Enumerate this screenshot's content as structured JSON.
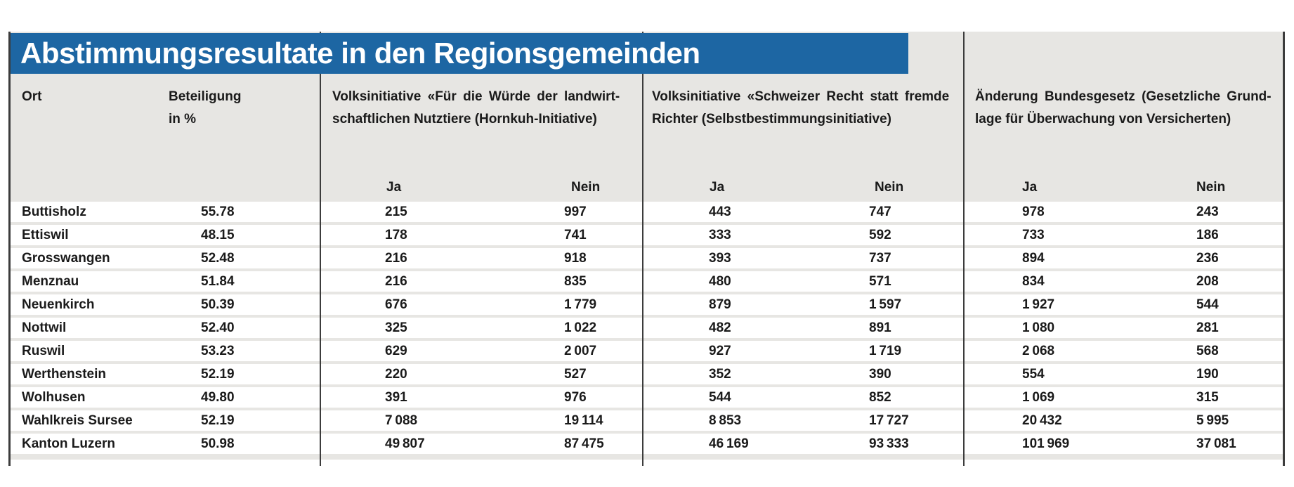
{
  "title": "Abstimmungsresultate in den Regionsgemeinden",
  "colors": {
    "banner_blue": "#1d66a3",
    "table_background": "#e7e6e3",
    "row_background": "#ffffff",
    "divider": "#3c3c3c",
    "text": "#1a1a1a",
    "title_text": "#ffffff"
  },
  "columns": {
    "ort": "Ort",
    "beteiligung_line1": "Beteiligung",
    "beteiligung_line2": "in %",
    "ja": "Ja",
    "nein": "Nein",
    "initiatives": [
      {
        "line1": "Volksinitiative «Für die Würde der landwirt-",
        "line2": "schaftlichen Nutztiere (Hornkuh-Initiative)"
      },
      {
        "line1": "Volksinitiative «Schweizer Recht statt fremde",
        "line2": "Richter (Selbstbestimmungsinitiative)"
      },
      {
        "line1": "Änderung Bundesgesetz (Gesetzliche Grund-",
        "line2": "lage für Überwachung von Versicherten)"
      }
    ]
  },
  "rows": [
    {
      "ort": "Buttisholz",
      "beteiligung": "55.78",
      "i1_ja": "215",
      "i1_nein": "997",
      "i2_ja": "443",
      "i2_nein": "747",
      "i3_ja": "978",
      "i3_nein": "243"
    },
    {
      "ort": "Ettiswil",
      "beteiligung": "48.15",
      "i1_ja": "178",
      "i1_nein": "741",
      "i2_ja": "333",
      "i2_nein": "592",
      "i3_ja": "733",
      "i3_nein": "186"
    },
    {
      "ort": "Grosswangen",
      "beteiligung": "52.48",
      "i1_ja": "216",
      "i1_nein": "918",
      "i2_ja": "393",
      "i2_nein": "737",
      "i3_ja": "894",
      "i3_nein": "236"
    },
    {
      "ort": "Menznau",
      "beteiligung": "51.84",
      "i1_ja": "216",
      "i1_nein": "835",
      "i2_ja": "480",
      "i2_nein": "571",
      "i3_ja": "834",
      "i3_nein": "208"
    },
    {
      "ort": "Neuenkirch",
      "beteiligung": "50.39",
      "i1_ja": "676",
      "i1_nein": "1 779",
      "i2_ja": "879",
      "i2_nein": "1 597",
      "i3_ja": "1 927",
      "i3_nein": "544"
    },
    {
      "ort": "Nottwil",
      "beteiligung": "52.40",
      "i1_ja": "325",
      "i1_nein": "1 022",
      "i2_ja": "482",
      "i2_nein": "891",
      "i3_ja": "1 080",
      "i3_nein": "281"
    },
    {
      "ort": "Ruswil",
      "beteiligung": "53.23",
      "i1_ja": "629",
      "i1_nein": "2 007",
      "i2_ja": "927",
      "i2_nein": "1 719",
      "i3_ja": "2 068",
      "i3_nein": "568"
    },
    {
      "ort": "Werthenstein",
      "beteiligung": "52.19",
      "i1_ja": "220",
      "i1_nein": "527",
      "i2_ja": "352",
      "i2_nein": "390",
      "i3_ja": "554",
      "i3_nein": "190"
    },
    {
      "ort": "Wolhusen",
      "beteiligung": "49.80",
      "i1_ja": "391",
      "i1_nein": "976",
      "i2_ja": "544",
      "i2_nein": "852",
      "i3_ja": "1 069",
      "i3_nein": "315"
    },
    {
      "ort": "Wahlkreis Sursee",
      "beteiligung": "52.19",
      "i1_ja": "7 088",
      "i1_nein": "19 114",
      "i2_ja": "8 853",
      "i2_nein": "17 727",
      "i3_ja": "20 432",
      "i3_nein": "5 995"
    },
    {
      "ort": "Kanton Luzern",
      "beteiligung": "50.98",
      "i1_ja": "49 807",
      "i1_nein": "87 475",
      "i2_ja": "46 169",
      "i2_nein": "93 333",
      "i3_ja": "101 969",
      "i3_nein": "37 081"
    }
  ],
  "chart_data": {
    "type": "table",
    "title": "Abstimmungsresultate in den Regionsgemeinden",
    "columns": [
      "Ort",
      "Beteiligung in %",
      "Volksinitiative «Für die Würde der landwirtschaftlichen Nutztiere (Hornkuh-Initiative) — Ja",
      "Volksinitiative «Für die Würde der landwirtschaftlichen Nutztiere (Hornkuh-Initiative) — Nein",
      "Volksinitiative «Schweizer Recht statt fremde Richter (Selbstbestimmungsinitiative) — Ja",
      "Volksinitiative «Schweizer Recht statt fremde Richter (Selbstbestimmungsinitiative) — Nein",
      "Änderung Bundesgesetz (Gesetzliche Grundlage für Überwachung von Versicherten) — Ja",
      "Änderung Bundesgesetz (Gesetzliche Grundlage für Überwachung von Versicherten) — Nein"
    ],
    "rows": [
      [
        "Buttisholz",
        55.78,
        215,
        997,
        443,
        747,
        978,
        243
      ],
      [
        "Ettiswil",
        48.15,
        178,
        741,
        333,
        592,
        733,
        186
      ],
      [
        "Grosswangen",
        52.48,
        216,
        918,
        393,
        737,
        894,
        236
      ],
      [
        "Menznau",
        51.84,
        216,
        835,
        480,
        571,
        834,
        208
      ],
      [
        "Neuenkirch",
        50.39,
        676,
        1779,
        879,
        1597,
        1927,
        544
      ],
      [
        "Nottwil",
        52.4,
        325,
        1022,
        482,
        891,
        1080,
        281
      ],
      [
        "Ruswil",
        53.23,
        629,
        2007,
        927,
        1719,
        2068,
        568
      ],
      [
        "Werthenstein",
        52.19,
        220,
        527,
        352,
        390,
        554,
        190
      ],
      [
        "Wolhusen",
        49.8,
        391,
        976,
        544,
        852,
        1069,
        315
      ],
      [
        "Wahlkreis Sursee",
        52.19,
        7088,
        19114,
        8853,
        17727,
        20432,
        5995
      ],
      [
        "Kanton Luzern",
        50.98,
        49807,
        87475,
        46169,
        93333,
        101969,
        37081
      ]
    ]
  }
}
